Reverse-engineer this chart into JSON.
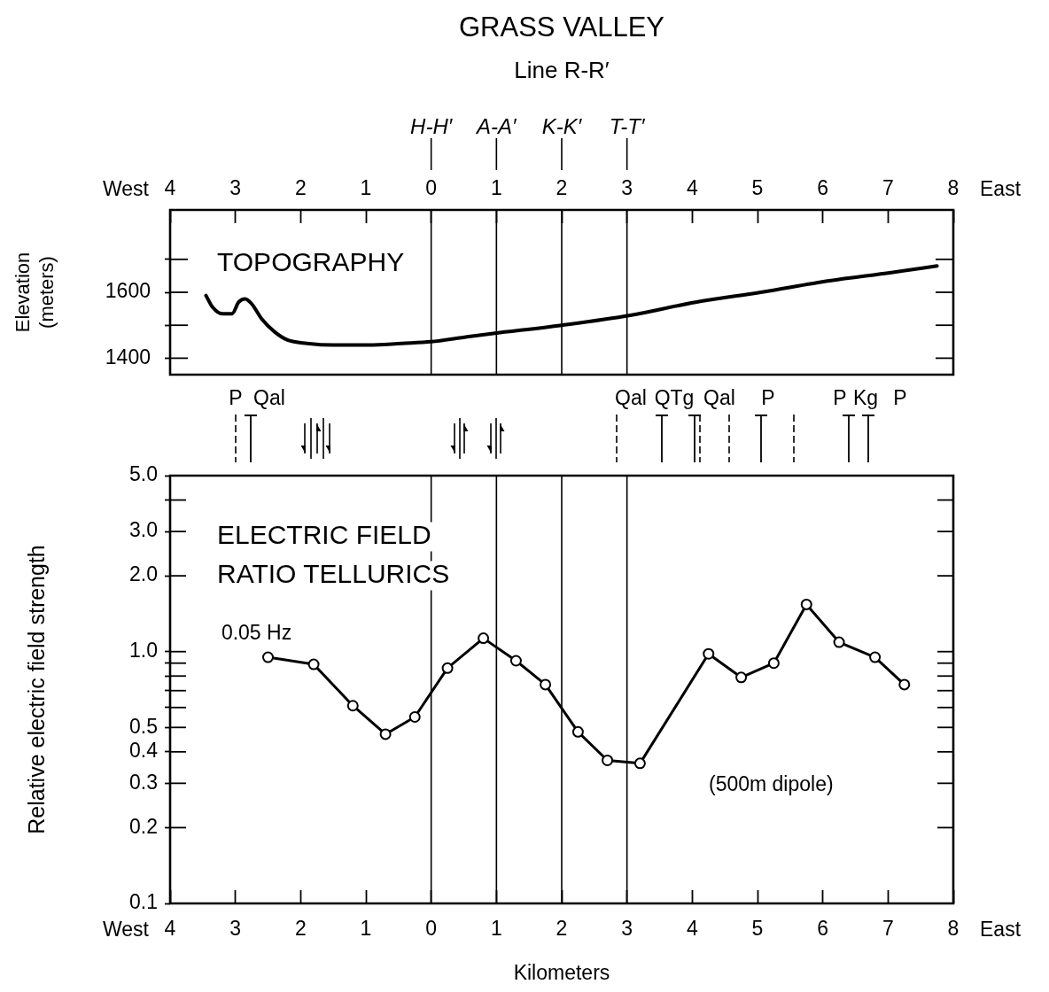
{
  "chart_data": [
    {
      "type": "line",
      "title": "GRASS VALLEY",
      "subtitle": "Line R-R′",
      "ylabel": "Elevation\n(meters)",
      "annotations": [
        "H-H′",
        "A-A′",
        "K-K′",
        "T-T′",
        "TOPOGRAPHY",
        "West",
        "East"
      ],
      "x": [
        -3.45,
        -3.35,
        -3.2,
        -3.05,
        -2.95,
        -2.85,
        -2.75,
        -2.6,
        -2.4,
        -2.2,
        -1.9,
        -1.5,
        -0.95,
        -0.45,
        0,
        0.55,
        0.95,
        2.0,
        3.05,
        4.05,
        5.05,
        6.1,
        7.05,
        7.75
      ],
      "values": [
        1590,
        1555,
        1535,
        1535,
        1570,
        1580,
        1565,
        1520,
        1480,
        1455,
        1445,
        1440,
        1440,
        1445,
        1450,
        1465,
        1475,
        1500,
        1530,
        1570,
        1600,
        1635,
        1660,
        1680
      ],
      "color": "#000000",
      "xlim": [
        -4,
        8
      ],
      "xticks": [
        {
          "value": -4,
          "label": "4"
        },
        {
          "value": -3,
          "label": "3"
        },
        {
          "value": -2,
          "label": "2"
        },
        {
          "value": -1,
          "label": "1"
        },
        0,
        1,
        2,
        3,
        4,
        5,
        6,
        7,
        8
      ],
      "ylim": [
        1350,
        1850
      ],
      "yticks": [
        1400,
        {
          "value": 1500,
          "label": null
        },
        1600,
        {
          "value": 1700,
          "label": null
        }
      ],
      "ref_lines": [
        {
          "axis": "x",
          "value": 0
        },
        {
          "axis": "x",
          "value": 1
        },
        {
          "axis": "x",
          "value": 2
        },
        {
          "axis": "x",
          "value": 3
        }
      ]
    },
    {
      "type": "line",
      "xlabel": "Kilometers",
      "ylabel": "Relative electric field strength",
      "annotations": [
        "ELECTRIC FIELD\nRATIO TELLURICS",
        "(500m dipole)",
        "West",
        "East",
        "P",
        "Qal",
        "Qal",
        "QTg",
        "Qal",
        "P",
        "P",
        "Kg",
        "P"
      ],
      "series": [
        {
          "name": "0.05 Hz",
          "color": "#000000",
          "x": [
            -2.5,
            -1.8,
            -1.2,
            -0.7,
            -0.25,
            0.25,
            0.8,
            1.3,
            1.75,
            2.25,
            2.7,
            3.2,
            4.25,
            4.75,
            5.25,
            5.75,
            6.25,
            6.8,
            7.25
          ],
          "values": [
            0.95,
            0.89,
            0.61,
            0.47,
            0.55,
            0.86,
            1.13,
            0.92,
            0.74,
            0.48,
            0.37,
            0.36,
            0.98,
            0.79,
            0.9,
            1.54,
            1.09,
            0.95,
            0.74
          ]
        }
      ],
      "log": "y",
      "marker": "circle",
      "xlim": [
        -4,
        8
      ],
      "xticks": [
        {
          "value": -4,
          "label": "4"
        },
        {
          "value": -3,
          "label": "3"
        },
        {
          "value": -2,
          "label": "2"
        },
        {
          "value": -1,
          "label": "1"
        },
        0,
        1,
        2,
        3,
        4,
        5,
        6,
        7,
        8
      ],
      "ylim": [
        0.1,
        5
      ],
      "yticks": [
        0.1,
        0.2,
        0.3,
        0.4,
        0.5,
        {
          "value": 0.6,
          "label": null
        },
        {
          "value": 0.7,
          "label": null
        },
        {
          "value": 0.8,
          "label": null
        },
        {
          "value": 0.9,
          "label": null
        },
        {
          "value": 1,
          "label": "1.0"
        },
        {
          "value": 2,
          "label": "2.0"
        },
        {
          "value": 3,
          "label": "3.0"
        },
        {
          "value": 4,
          "label": null
        },
        {
          "value": 5,
          "label": "5.0"
        }
      ],
      "ref_lines": [
        {
          "axis": "x",
          "value": 0
        },
        {
          "axis": "x",
          "value": 1
        },
        {
          "axis": "x",
          "value": 2
        },
        {
          "axis": "x",
          "value": 3
        }
      ]
    }
  ]
}
